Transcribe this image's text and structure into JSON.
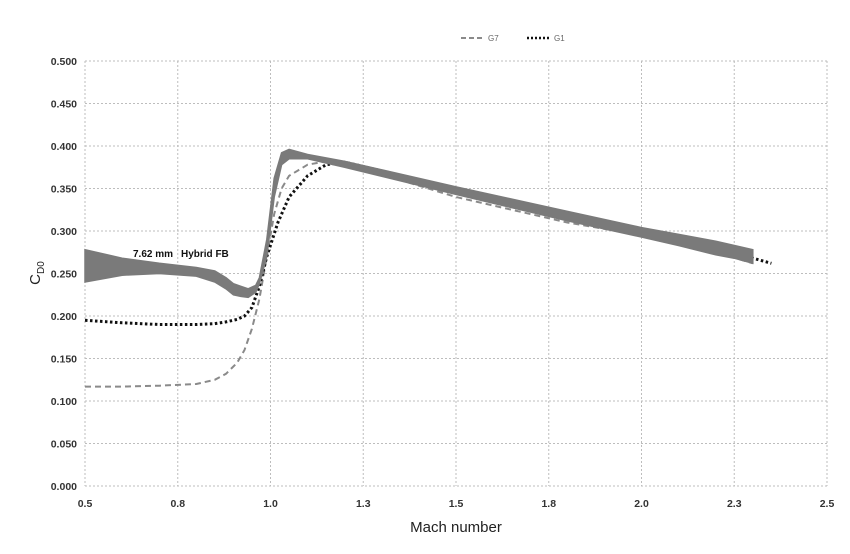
{
  "chart_data": {
    "type": "line",
    "title": "",
    "xlabel": "Mach number",
    "ylabel": "C",
    "ylabel_sub": "D0",
    "xlim": [
      0.5,
      2.5
    ],
    "ylim": [
      0.0,
      0.5
    ],
    "x_tick_labels": [
      "0.5",
      "0.8",
      "1.0",
      "1.3",
      "1.5",
      "1.8",
      "2.0",
      "2.3",
      "2.5"
    ],
    "y_tick_labels": [
      "0.000",
      "0.050",
      "0.100",
      "0.150",
      "0.200",
      "0.250",
      "0.300",
      "0.350",
      "0.400",
      "0.450",
      "0.500"
    ],
    "grid": true,
    "legend_position": "top-center",
    "annotation": {
      "size": "7.62 mm",
      "name": "Hybrid FB"
    },
    "series": [
      {
        "name": "G7",
        "style": "dashed",
        "color": "#8a8a8a",
        "x": [
          0.5,
          0.6,
          0.7,
          0.8,
          0.85,
          0.88,
          0.91,
          0.93,
          0.95,
          0.97,
          0.99,
          1.01,
          1.03,
          1.05,
          1.1,
          1.15,
          1.2,
          1.5,
          1.8,
          2.0,
          2.2,
          2.3
        ],
        "y": [
          0.117,
          0.117,
          0.118,
          0.12,
          0.125,
          0.132,
          0.145,
          0.16,
          0.185,
          0.22,
          0.27,
          0.32,
          0.35,
          0.365,
          0.378,
          0.382,
          0.38,
          0.34,
          0.31,
          0.295,
          0.275,
          0.262
        ]
      },
      {
        "name": "G1",
        "style": "dotted",
        "color": "#111111",
        "x": [
          0.5,
          0.6,
          0.7,
          0.8,
          0.85,
          0.88,
          0.91,
          0.93,
          0.95,
          0.97,
          0.99,
          1.02,
          1.05,
          1.1,
          1.15,
          1.2,
          1.5,
          1.8,
          2.0,
          2.2,
          2.35
        ],
        "y": [
          0.195,
          0.192,
          0.19,
          0.19,
          0.191,
          0.193,
          0.196,
          0.2,
          0.21,
          0.235,
          0.27,
          0.31,
          0.34,
          0.365,
          0.378,
          0.381,
          0.35,
          0.32,
          0.3,
          0.28,
          0.262
        ]
      },
      {
        "name": "7.62 mm Hybrid FB",
        "style": "band",
        "color": "#7a7a7a",
        "x": [
          0.5,
          0.6,
          0.7,
          0.8,
          0.85,
          0.88,
          0.9,
          0.92,
          0.94,
          0.96,
          0.97,
          0.99,
          1.01,
          1.03,
          1.05,
          1.1,
          1.2,
          1.5,
          1.8,
          2.0,
          2.1,
          2.2,
          2.25,
          2.3
        ],
        "y_lower": [
          0.24,
          0.248,
          0.25,
          0.247,
          0.24,
          0.232,
          0.225,
          0.223,
          0.222,
          0.228,
          0.238,
          0.27,
          0.34,
          0.378,
          0.385,
          0.385,
          0.375,
          0.343,
          0.312,
          0.293,
          0.283,
          0.272,
          0.268,
          0.262
        ],
        "y_upper": [
          0.278,
          0.268,
          0.262,
          0.257,
          0.253,
          0.245,
          0.238,
          0.235,
          0.232,
          0.236,
          0.245,
          0.29,
          0.362,
          0.392,
          0.396,
          0.39,
          0.382,
          0.352,
          0.323,
          0.304,
          0.296,
          0.288,
          0.283,
          0.278
        ]
      }
    ]
  }
}
